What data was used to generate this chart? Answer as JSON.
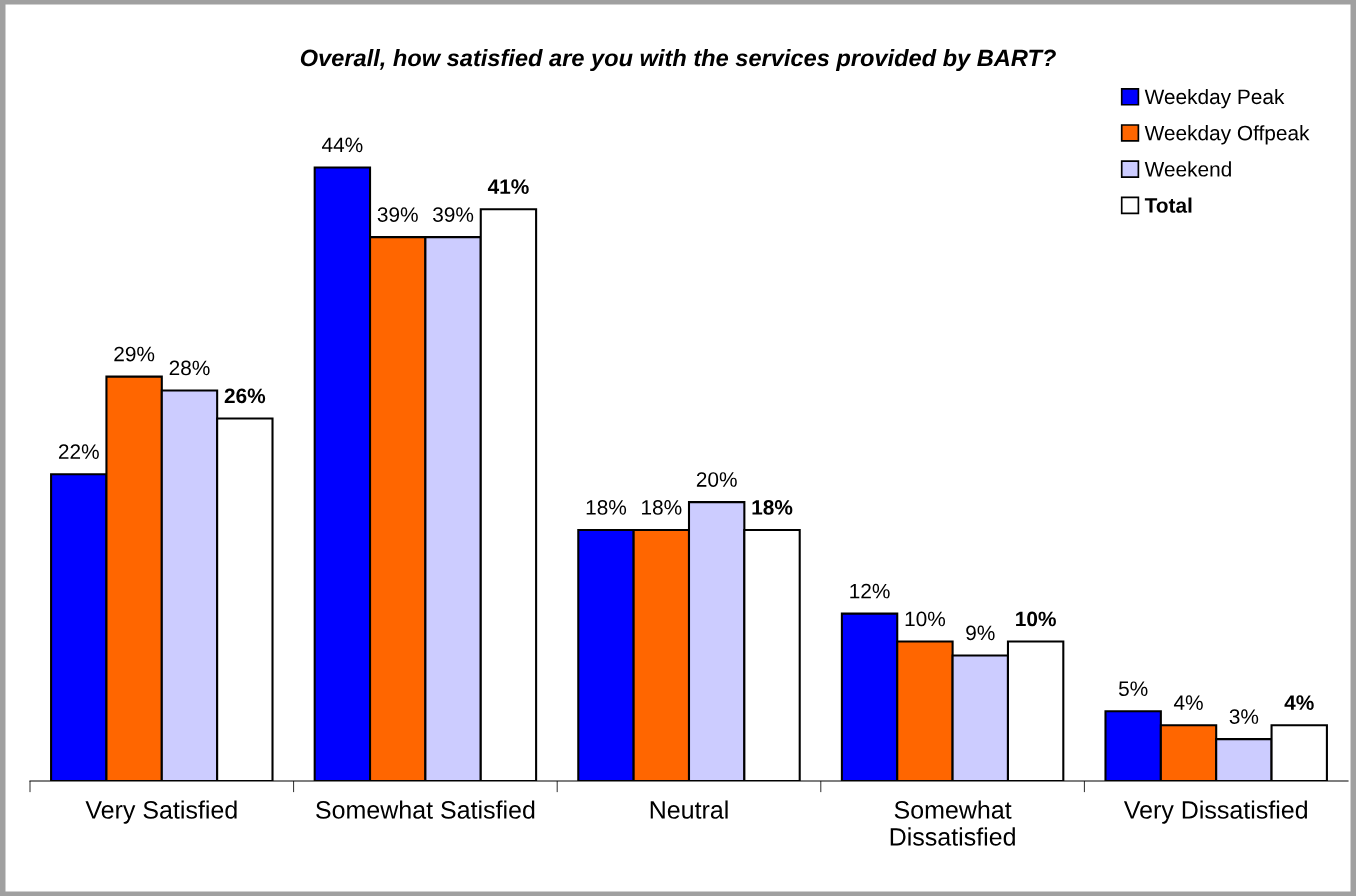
{
  "chart_data": {
    "type": "bar",
    "title": "Overall, how satisfied are you with the services provided by BART?",
    "categories": [
      "Very Satisfied",
      "Somewhat Satisfied",
      "Neutral",
      "Somewhat\nDissatisfied",
      "Very Dissatisfied"
    ],
    "series": [
      {
        "name": "Weekday Peak",
        "color": "#0000ff",
        "values": [
          22,
          44,
          18,
          12,
          5
        ],
        "value_labels": [
          "22%",
          "44%",
          "18%",
          "12%",
          "5%"
        ]
      },
      {
        "name": "Weekday Offpeak",
        "color": "#ff6600",
        "values": [
          29,
          39,
          18,
          10,
          4
        ],
        "value_labels": [
          "29%",
          "39%",
          "18%",
          "10%",
          "4%"
        ]
      },
      {
        "name": "Weekend",
        "color": "#ccccff",
        "values": [
          28,
          39,
          20,
          9,
          3
        ],
        "value_labels": [
          "28%",
          "39%",
          "20%",
          "9%",
          "3%"
        ]
      },
      {
        "name": "Total",
        "color": "#ffffff",
        "values": [
          26,
          41,
          18,
          10,
          4
        ],
        "value_labels": [
          "26%",
          "41%",
          "18%",
          "10%",
          "4%"
        ]
      }
    ],
    "legend": "top right"
  }
}
